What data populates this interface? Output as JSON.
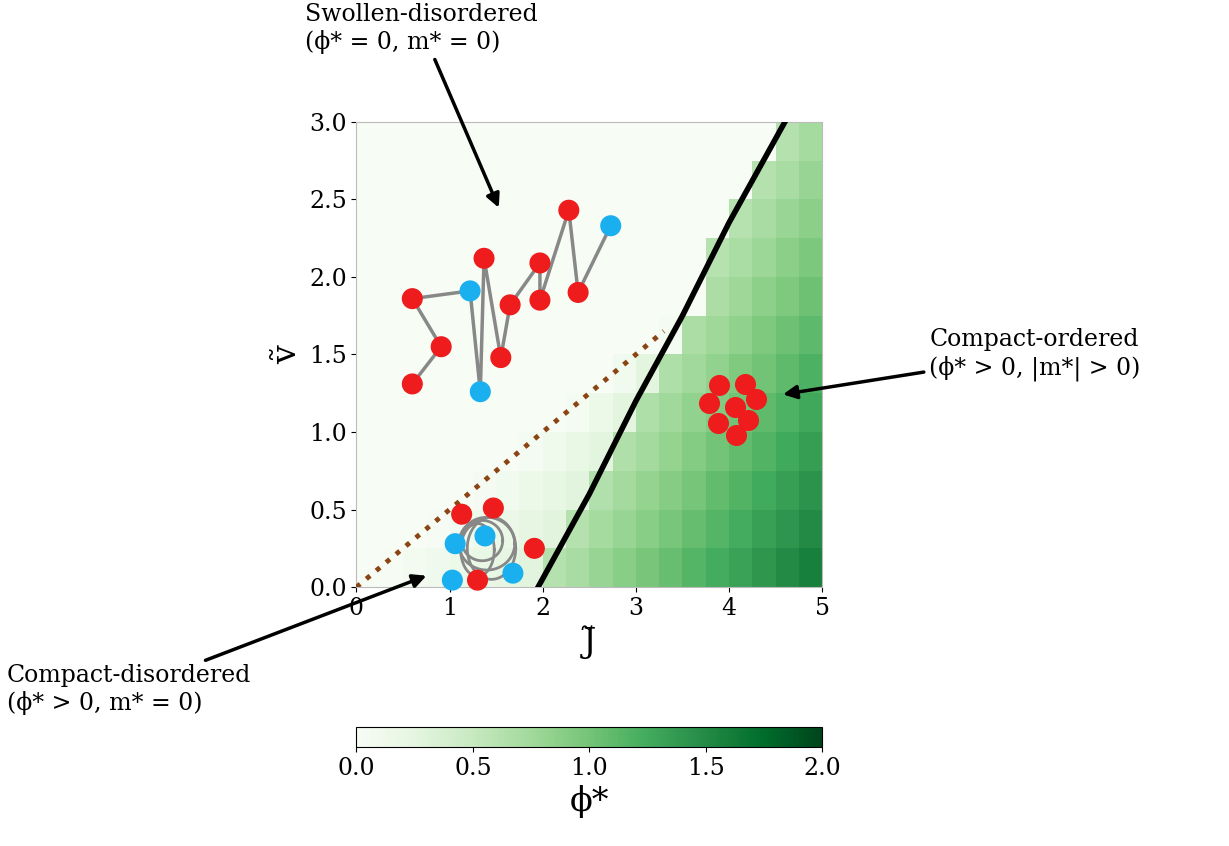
{
  "chart_data": {
    "type": "heatmap",
    "x_label": "J̃",
    "y_label": "ṽ",
    "xlim": [
      0,
      5
    ],
    "ylim": [
      0,
      3
    ],
    "xticks": [
      0,
      1,
      2,
      3,
      4,
      5
    ],
    "yticks": [
      {
        "value": 0,
        "label": "0.0"
      },
      {
        "value": 0.5,
        "label": "0.5"
      },
      {
        "value": 1,
        "label": "1.0"
      },
      {
        "value": 1.5,
        "label": "1.5"
      },
      {
        "value": 2,
        "label": "2.0"
      },
      {
        "value": 2.5,
        "label": "2.5"
      },
      {
        "value": 3,
        "label": "3.0"
      }
    ],
    "x": [
      0.125,
      0.375,
      0.625,
      0.875,
      1.125,
      1.375,
      1.625,
      1.875,
      2.125,
      2.375,
      2.625,
      2.875,
      3.125,
      3.375,
      3.625,
      3.875,
      4.125,
      4.375,
      4.625,
      4.875
    ],
    "y": [
      0.125,
      0.375,
      0.625,
      0.875,
      1.125,
      1.375,
      1.625,
      1.875,
      2.125,
      2.375,
      2.625,
      2.875
    ],
    "cells": [
      [
        0,
        0.02,
        0.06,
        0.1,
        0.15,
        0.19,
        0.23,
        0.27,
        0.62,
        0.71,
        0.8,
        0.89,
        0.97,
        1.06,
        1.15,
        1.24,
        1.32,
        1.41,
        1.5,
        1.59
      ],
      [
        0,
        0,
        0,
        0.02,
        0.07,
        0.12,
        0.17,
        0.22,
        0.27,
        0.63,
        0.72,
        0.8,
        0.89,
        0.98,
        1.07,
        1.15,
        1.24,
        1.33,
        1.42,
        1.5
      ],
      [
        0,
        0,
        0,
        0,
        0,
        0.03,
        0.09,
        0.15,
        0.21,
        0.27,
        0.64,
        0.73,
        0.82,
        0.9,
        0.99,
        1.08,
        1.17,
        1.25,
        1.34,
        1.43
      ],
      [
        0,
        0,
        0,
        0,
        0,
        0,
        0,
        0.04,
        0.11,
        0.19,
        0.26,
        0.65,
        0.73,
        0.82,
        0.91,
        1.0,
        1.08,
        1.17,
        1.26,
        1.35
      ],
      [
        0,
        0,
        0,
        0,
        0,
        0,
        0,
        0,
        0,
        0.05,
        0.16,
        0.26,
        0.66,
        0.75,
        0.83,
        0.92,
        1.01,
        1.1,
        1.18,
        1.27
      ],
      [
        0,
        0,
        0,
        0,
        0,
        0,
        0,
        0,
        0,
        0,
        0,
        0.09,
        0.26,
        0.66,
        0.75,
        0.84,
        0.93,
        1.01,
        1.1,
        1.19
      ],
      [
        0,
        0,
        0,
        0,
        0,
        0,
        0,
        0,
        0,
        0,
        0,
        0,
        0,
        0.05,
        0.68,
        0.76,
        0.85,
        0.94,
        1.03,
        1.11
      ],
      [
        0,
        0,
        0,
        0,
        0,
        0,
        0,
        0,
        0,
        0,
        0,
        0,
        0,
        0,
        0,
        0.68,
        0.77,
        0.86,
        0.94,
        1.03
      ],
      [
        0,
        0,
        0,
        0,
        0,
        0,
        0,
        0,
        0,
        0,
        0,
        0,
        0,
        0,
        0,
        0.61,
        0.69,
        0.78,
        0.87,
        0.96
      ],
      [
        0,
        0,
        0,
        0,
        0,
        0,
        0,
        0,
        0,
        0,
        0,
        0,
        0,
        0,
        0,
        0,
        0.61,
        0.7,
        0.79,
        0.87
      ],
      [
        0,
        0,
        0,
        0,
        0,
        0,
        0,
        0,
        0,
        0,
        0,
        0,
        0,
        0,
        0,
        0,
        0,
        0.62,
        0.71,
        0.8
      ],
      [
        0,
        0,
        0,
        0,
        0,
        0,
        0,
        0,
        0,
        0,
        0,
        0,
        0,
        0,
        0,
        0,
        0,
        0,
        0.63,
        0.72
      ]
    ],
    "colorbar_label": "ϕ*",
    "colorbar_range": [
      0,
      2
    ],
    "colorbar_ticks": [
      {
        "value": 0,
        "label": "0.0"
      },
      {
        "value": 0.5,
        "label": "0.5"
      },
      {
        "value": 1,
        "label": "1.0"
      },
      {
        "value": 1.5,
        "label": "1.5"
      },
      {
        "value": 2,
        "label": "2.0"
      }
    ],
    "color": "Greens",
    "lines": [
      {
        "x": [
          1.95,
          2.5,
          3.0,
          3.5,
          4.0,
          4.6
        ],
        "y": [
          0,
          0.6,
          1.2,
          1.75,
          2.35,
          3.0
        ],
        "color": "#000000",
        "line_style": "solid"
      },
      {
        "x": [
          0,
          3.3
        ],
        "y": [
          0,
          1.65
        ],
        "color": "#8b4513",
        "line_style": "dotted"
      }
    ],
    "annotations": [
      "Swollen-disordered\n(ϕ* = 0, m* = 0)",
      "Compact-ordered\n(ϕ* > 0, |m*| > 0)",
      "Compact-disordered\n(ϕ* > 0, m* = 0)"
    ]
  }
}
